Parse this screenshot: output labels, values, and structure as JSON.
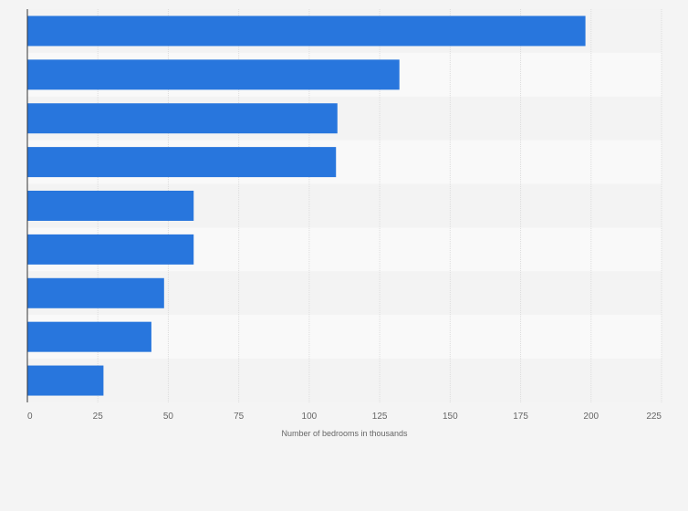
{
  "chart_data": {
    "type": "bar",
    "orientation": "horizontal",
    "categories": [
      "",
      "",
      "",
      "",
      "",
      "",
      "",
      "",
      ""
    ],
    "values": [
      198,
      132,
      110,
      109.5,
      59,
      59,
      48.5,
      44,
      27
    ],
    "title": "",
    "xlabel": "Number of bedrooms in thousands",
    "ylabel": "",
    "xlim": [
      0,
      225
    ],
    "xticks": [
      "0",
      "25",
      "50",
      "75",
      "100",
      "125",
      "150",
      "175",
      "200",
      "225"
    ],
    "grid": true,
    "legend": "none",
    "bar_color": "#2876dd",
    "band_colors": [
      "#f3f3f3",
      "#f9f9f9"
    ],
    "grid_color": "#dddddd"
  }
}
